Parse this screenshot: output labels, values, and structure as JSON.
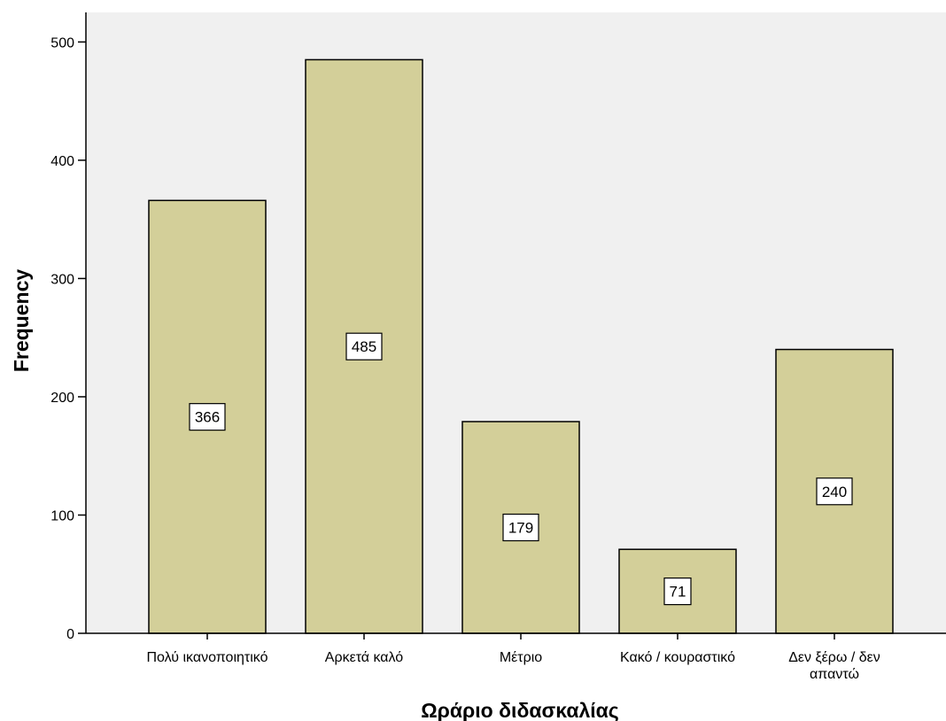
{
  "chart_data": {
    "type": "bar",
    "categories": [
      "Πολύ ικανοποιητικό",
      "Αρκετά καλό",
      "Μέτριο",
      "Κακό / κουραστικό",
      "Δεν ξέρω / δεν απαντώ"
    ],
    "category_lines": [
      [
        "Πολύ ικανοποιητικό"
      ],
      [
        "Αρκετά καλό"
      ],
      [
        "Μέτριο"
      ],
      [
        "Κακό / κουραστικό"
      ],
      [
        "Δεν ξέρω / δεν",
        "απαντώ"
      ]
    ],
    "values": [
      366,
      485,
      179,
      71,
      240
    ],
    "data_labels": [
      "366",
      "485",
      "179",
      "71",
      "240"
    ],
    "xlabel": "Ωράριο διδασκαλίας",
    "ylabel": "Frequency",
    "ylim": [
      0,
      525
    ],
    "yticks": [
      0,
      100,
      200,
      300,
      400,
      500
    ],
    "grid": false,
    "colors": {
      "bar_fill": "#d3cf99",
      "bar_stroke": "#000000",
      "plot_background": "#f0f0f0",
      "label_box": "#ffffff"
    }
  }
}
